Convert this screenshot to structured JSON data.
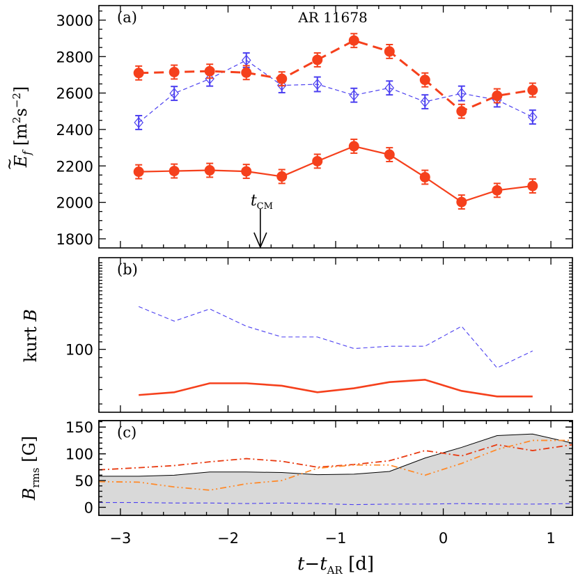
{
  "colors": {
    "red": "#f5401c",
    "blue": "#4b3ff0",
    "orange": "#ff8a2a",
    "redorange": "#e83a10",
    "fill": "#d9d9d9",
    "black": "#000000"
  },
  "shared_x_axis": {
    "label_main": "t−t",
    "label_sub": "AR",
    "label_unit": "[d]",
    "range": [
      -3.2,
      1.2
    ],
    "ticks": [
      -3,
      -2,
      -1,
      0,
      1
    ],
    "tick_labels": [
      "−3",
      "−2",
      "−1",
      "0",
      "1"
    ]
  },
  "chart_data": [
    {
      "panel": "(a)",
      "type": "line",
      "annotation": "AR 11678",
      "ylabel": "Ẽ_f [m²s⁻²]",
      "ylabel_parts": {
        "sym": "E",
        "sub": "f",
        "unit_a": "[m",
        "unit_b": "s",
        "unit_c": "]",
        "exp_a": "2",
        "exp_b": "−2"
      },
      "ylim": [
        1750,
        3080
      ],
      "yticks": [
        1800,
        2000,
        2200,
        2400,
        2600,
        2800,
        3000
      ],
      "marker": {
        "x": -1.7,
        "label": "t",
        "sub": "CM"
      },
      "x": [
        -2.83,
        -2.5,
        -2.17,
        -1.83,
        -1.5,
        -1.17,
        -0.83,
        -0.5,
        -0.17,
        0.17,
        0.5,
        0.83
      ],
      "series": [
        {
          "style": "red-dashed-dots",
          "values": [
            2710,
            2715,
            2720,
            2712,
            2678,
            2782,
            2888,
            2828,
            2672,
            2500,
            2585,
            2616
          ],
          "errors": [
            38,
            38,
            38,
            38,
            38,
            38,
            38,
            38,
            38,
            38,
            38,
            38
          ]
        },
        {
          "style": "blue-dashed-diamonds",
          "values": [
            2438,
            2598,
            2678,
            2780,
            2642,
            2648,
            2588,
            2628,
            2552,
            2598,
            2562,
            2468
          ],
          "errors": [
            38,
            38,
            40,
            40,
            40,
            40,
            38,
            38,
            38,
            40,
            38,
            38
          ]
        },
        {
          "style": "red-solid-dots",
          "values": [
            2168,
            2172,
            2176,
            2170,
            2142,
            2226,
            2308,
            2262,
            2138,
            2002,
            2066,
            2090
          ],
          "errors": [
            38,
            38,
            38,
            38,
            38,
            38,
            38,
            38,
            38,
            38,
            38,
            38
          ]
        }
      ]
    },
    {
      "panel": "(b)",
      "type": "line",
      "ylabel": "kurt B",
      "ylabel_parts": {
        "pre": "kurt ",
        "sym": "B"
      },
      "scale": "log",
      "ylim": [
        45,
        320
      ],
      "yticks": [
        100
      ],
      "ytick_labels": [
        "100"
      ],
      "x": [
        -2.83,
        -2.5,
        -2.17,
        -1.83,
        -1.5,
        -1.17,
        -0.83,
        -0.5,
        -0.17,
        0.17,
        0.5,
        0.83
      ],
      "series": [
        {
          "style": "blue-dashed",
          "values": [
            172,
            143,
            167,
            134,
            117,
            117,
            101,
            104,
            104,
            134,
            79,
            98
          ]
        },
        {
          "style": "red-solid",
          "values": [
            56,
            58,
            65,
            65,
            63,
            58,
            61,
            66,
            68,
            59,
            55,
            55
          ]
        }
      ]
    },
    {
      "panel": "(c)",
      "type": "area",
      "ylabel": "B_rms [G]",
      "ylabel_parts": {
        "sym": "B",
        "sub": "rms",
        "unit": "[G]"
      },
      "ylim": [
        -15,
        162
      ],
      "yticks": [
        0,
        50,
        100,
        150
      ],
      "ytick_labels": [
        "0",
        "50",
        "100",
        "150"
      ],
      "series": [
        {
          "style": "gray-filled",
          "x": [
            -3.2,
            -2.83,
            -2.5,
            -2.17,
            -1.83,
            -1.5,
            -1.17,
            -0.83,
            -0.5,
            -0.17,
            0.17,
            0.5,
            0.83,
            1.2
          ],
          "values": [
            58,
            58,
            60,
            66,
            66,
            65,
            61,
            62,
            67,
            92,
            112,
            134,
            137,
            120
          ]
        },
        {
          "style": "redorange-dashdot",
          "x": [
            -3.2,
            -2.83,
            -2.5,
            -2.17,
            -1.83,
            -1.5,
            -1.17,
            -0.83,
            -0.5,
            -0.17,
            0.17,
            0.5,
            0.83,
            1.2
          ],
          "values": [
            70,
            74,
            78,
            85,
            91,
            86,
            75,
            80,
            87,
            106,
            96,
            117,
            106,
            117
          ]
        },
        {
          "style": "orange-dashdotdot",
          "x": [
            -3.2,
            -2.83,
            -2.5,
            -2.17,
            -1.83,
            -1.5,
            -1.17,
            -0.83,
            -0.5,
            -0.17,
            0.17,
            0.5,
            0.83,
            1.2
          ],
          "values": [
            48,
            47,
            38,
            32,
            44,
            50,
            73,
            79,
            79,
            60,
            82,
            108,
            125,
            125
          ]
        },
        {
          "style": "blue-dashed",
          "x": [
            -3.2,
            -2.83,
            -2.5,
            -2.17,
            -1.83,
            -1.5,
            -1.17,
            -0.83,
            -0.5,
            -0.17,
            0.17,
            0.5,
            0.83,
            1.2
          ],
          "values": [
            9,
            9,
            8,
            8,
            7,
            8,
            7,
            5,
            6,
            6,
            7,
            6,
            6,
            7
          ]
        }
      ]
    }
  ]
}
